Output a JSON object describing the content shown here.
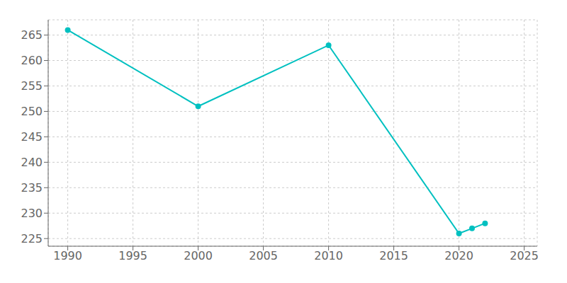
{
  "chart_data": {
    "type": "line",
    "x": [
      1990,
      2000,
      2010,
      2020,
      2021,
      2022
    ],
    "values": [
      266,
      251,
      263,
      226,
      227,
      228
    ],
    "color": "#00C0C0",
    "marker": "circle",
    "xlim": [
      1988.5,
      2026
    ],
    "ylim": [
      223.5,
      268
    ],
    "xticks": [
      1990,
      1995,
      2000,
      2005,
      2010,
      2015,
      2020,
      2025
    ],
    "yticks": [
      225,
      230,
      235,
      240,
      245,
      250,
      255,
      260,
      265
    ],
    "grid": true
  }
}
